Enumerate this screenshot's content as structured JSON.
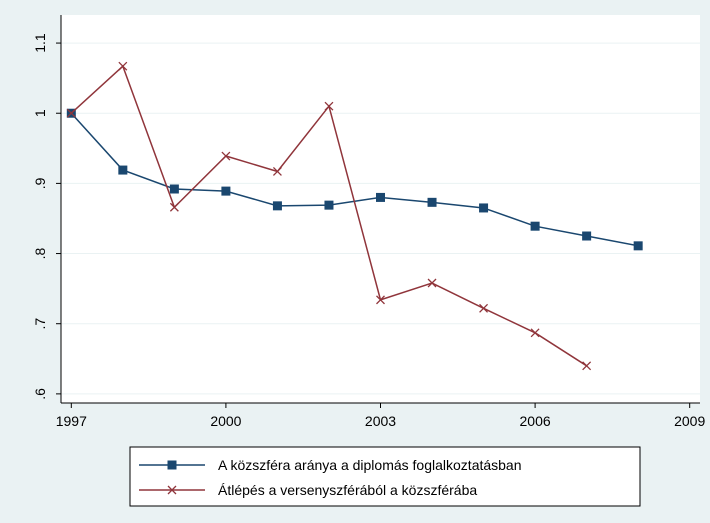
{
  "chart_data": {
    "type": "line",
    "x": [
      1997,
      1998,
      1999,
      2000,
      2001,
      2002,
      2003,
      2004,
      2005,
      2006,
      2007,
      2008
    ],
    "series": [
      {
        "name": "A közszféra aránya a diplomás foglalkoztatásban",
        "color": "#1a476f",
        "marker": "square",
        "values": [
          1.0,
          0.919,
          0.892,
          0.889,
          0.868,
          0.869,
          0.88,
          0.873,
          0.865,
          0.839,
          0.825,
          0.811
        ]
      },
      {
        "name": "Átlépés a versenyszférából a közszférába",
        "color": "#90353b",
        "marker": "x",
        "values": [
          1.0,
          1.067,
          0.866,
          0.939,
          0.917,
          1.01,
          0.734,
          0.758,
          0.722,
          0.687,
          0.64,
          null
        ]
      }
    ],
    "xlim": [
      1996.8,
      2009.2
    ],
    "xticks": [
      1997,
      2000,
      2003,
      2006,
      2009
    ],
    "ylim": [
      0.587,
      1.14
    ],
    "yticks": [
      {
        "value": 0.6,
        "label": ".6"
      },
      {
        "value": 0.7,
        "label": ".7"
      },
      {
        "value": 0.8,
        "label": ".8"
      },
      {
        "value": 0.9,
        "label": ".9"
      },
      1,
      1.1
    ],
    "grid": true
  }
}
